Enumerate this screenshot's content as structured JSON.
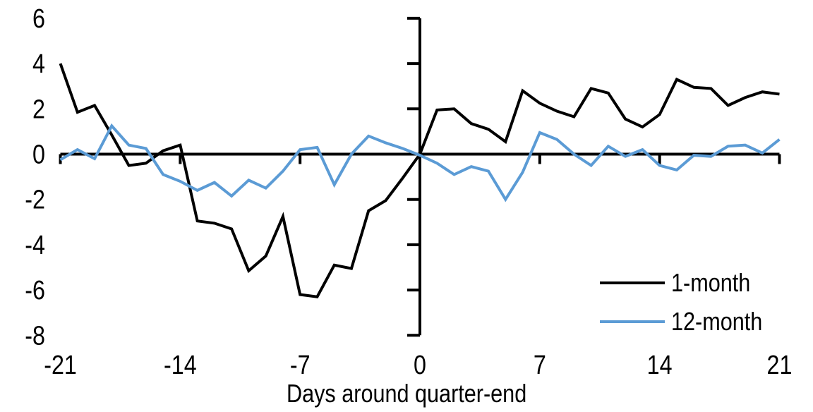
{
  "chart_data": {
    "type": "line",
    "title": "",
    "xlabel": "Days around quarter-end",
    "ylabel": "",
    "xlim": [
      -21,
      21
    ],
    "ylim": [
      -8,
      6
    ],
    "grid": false,
    "legend_position": "inside-bottom-right",
    "axis_color": "#000000",
    "background_color": "#FFFFFF",
    "x_ticks": [
      -21,
      -14,
      -7,
      0,
      7,
      14,
      21
    ],
    "y_ticks": [
      6,
      4,
      2,
      0,
      -2,
      -4,
      -6,
      -8
    ],
    "x": [
      -21,
      -20,
      -19,
      -18,
      -17,
      -16,
      -15,
      -14,
      -13,
      -12,
      -11,
      -10,
      -9,
      -8,
      -7,
      -6,
      -5,
      -4,
      -3,
      -2,
      -1,
      0,
      1,
      2,
      3,
      4,
      5,
      6,
      7,
      8,
      9,
      10,
      11,
      12,
      13,
      14,
      15,
      16,
      17,
      18,
      19,
      20,
      21
    ],
    "series": [
      {
        "name": "1-month",
        "color": "#000000",
        "values": [
          4.0,
          1.85,
          2.15,
          0.85,
          -0.5,
          -0.4,
          0.15,
          0.4,
          -2.95,
          -3.05,
          -3.3,
          -5.15,
          -4.5,
          -2.75,
          -6.2,
          -6.3,
          -4.9,
          -5.05,
          -2.5,
          -2.05,
          -1.05,
          0.0,
          1.95,
          2.0,
          1.35,
          1.1,
          0.55,
          2.8,
          2.25,
          1.9,
          1.65,
          2.9,
          2.7,
          1.55,
          1.2,
          1.75,
          3.3,
          2.95,
          2.9,
          2.15,
          2.5,
          2.75,
          2.65
        ]
      },
      {
        "name": "12-month",
        "color": "#5B9BD5",
        "values": [
          -0.25,
          0.2,
          -0.2,
          1.25,
          0.4,
          0.25,
          -0.9,
          -1.2,
          -1.6,
          -1.25,
          -1.85,
          -1.15,
          -1.5,
          -0.75,
          0.2,
          0.3,
          -1.35,
          0.0,
          0.8,
          0.5,
          0.25,
          -0.05,
          -0.4,
          -0.9,
          -0.55,
          -0.75,
          -2.0,
          -0.8,
          0.95,
          0.65,
          0.0,
          -0.5,
          0.35,
          -0.1,
          0.2,
          -0.5,
          -0.7,
          -0.05,
          -0.1,
          0.35,
          0.4,
          0.05,
          0.65
        ]
      }
    ]
  }
}
